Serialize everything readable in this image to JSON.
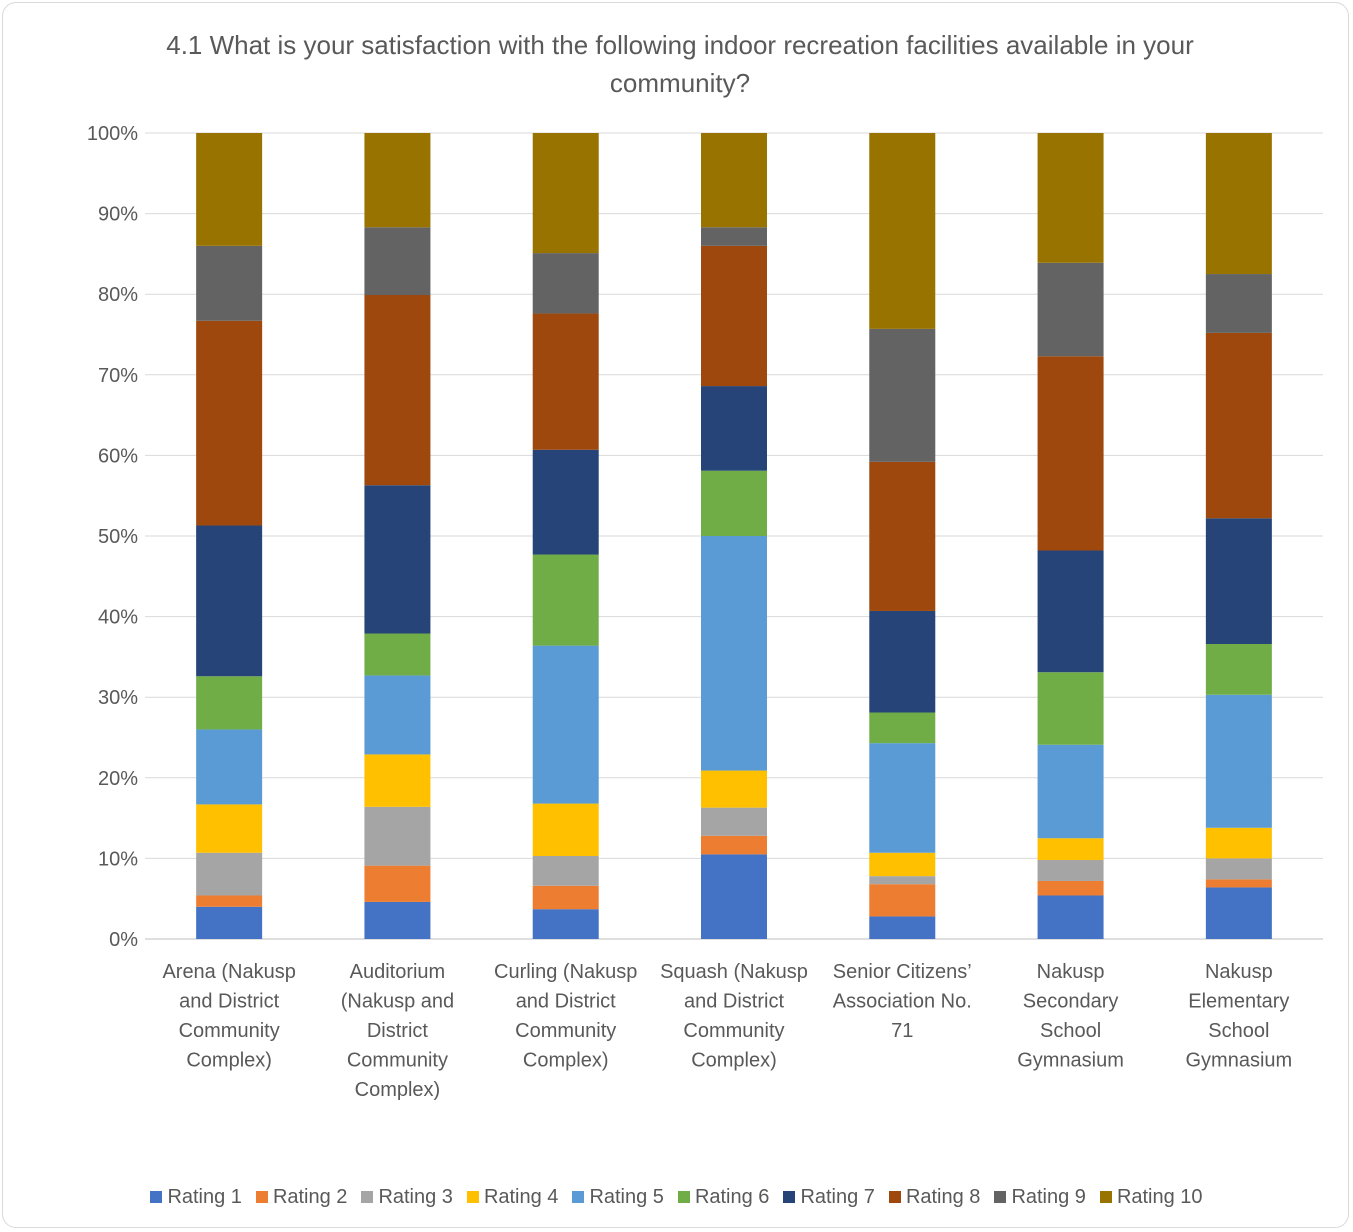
{
  "chart_data": {
    "type": "bar",
    "stacked": true,
    "normalized": true,
    "title": "4.1 What is your satisfaction with the following indoor recreation facilities available in your community?",
    "ylim": [
      0,
      100
    ],
    "yticks": [
      "0%",
      "10%",
      "20%",
      "30%",
      "40%",
      "50%",
      "60%",
      "70%",
      "80%",
      "90%",
      "100%"
    ],
    "grid": true,
    "legend_position": "bottom",
    "categories": [
      "Arena (Nakusp and District Community Complex)",
      "Auditorium (Nakusp and District Community Complex)",
      "Curling (Nakusp and District Community Complex)",
      "Squash (Nakusp and District Community Complex)",
      "Senior Citizens’ Association No. 71",
      "Nakusp Secondary School Gymnasium",
      "Nakusp Elementary School Gymnasium"
    ],
    "category_lines": [
      [
        "Arena (Nakusp",
        "and District",
        "Community",
        "Complex)"
      ],
      [
        "Auditorium",
        "(Nakusp and",
        "District",
        "Community",
        "Complex)"
      ],
      [
        "Curling (Nakusp",
        "and District",
        "Community",
        "Complex)"
      ],
      [
        "Squash (Nakusp",
        "and District",
        "Community",
        "Complex)"
      ],
      [
        "Senior Citizens’",
        "Association No.",
        "71"
      ],
      [
        "Nakusp",
        "Secondary",
        "School",
        "Gymnasium"
      ],
      [
        "Nakusp",
        "Elementary",
        "School",
        "Gymnasium"
      ]
    ],
    "series": [
      {
        "name": "Rating 1",
        "color": "#4472c4",
        "values": [
          4.0,
          4.6,
          3.7,
          10.5,
          2.8,
          5.4,
          6.4
        ]
      },
      {
        "name": "Rating 2",
        "color": "#ed7d31",
        "values": [
          1.4,
          4.5,
          2.9,
          2.3,
          4.0,
          1.8,
          1.0
        ]
      },
      {
        "name": "Rating 3",
        "color": "#a5a5a5",
        "values": [
          5.3,
          7.3,
          3.7,
          3.5,
          1.0,
          2.6,
          2.6
        ]
      },
      {
        "name": "Rating 4",
        "color": "#ffc000",
        "values": [
          6.0,
          6.5,
          6.5,
          4.6,
          2.9,
          2.7,
          3.8
        ]
      },
      {
        "name": "Rating 5",
        "color": "#5b9bd5",
        "values": [
          9.3,
          9.8,
          19.6,
          29.1,
          13.6,
          11.6,
          16.5
        ]
      },
      {
        "name": "Rating 6",
        "color": "#70ad47",
        "values": [
          6.6,
          5.2,
          11.3,
          8.1,
          3.8,
          9.0,
          6.3
        ]
      },
      {
        "name": "Rating 7",
        "color": "#264478",
        "values": [
          18.7,
          18.4,
          13.0,
          10.5,
          12.6,
          15.1,
          15.6
        ]
      },
      {
        "name": "Rating 8",
        "color": "#9e480e",
        "values": [
          25.4,
          23.6,
          16.9,
          17.4,
          18.5,
          24.1,
          23.0
        ]
      },
      {
        "name": "Rating 9",
        "color": "#636363",
        "values": [
          9.3,
          8.4,
          7.5,
          2.3,
          16.5,
          11.6,
          7.3
        ]
      },
      {
        "name": "Rating 10",
        "color": "#997300",
        "values": [
          14.0,
          11.7,
          14.9,
          11.7,
          24.3,
          16.1,
          17.5
        ]
      }
    ]
  }
}
